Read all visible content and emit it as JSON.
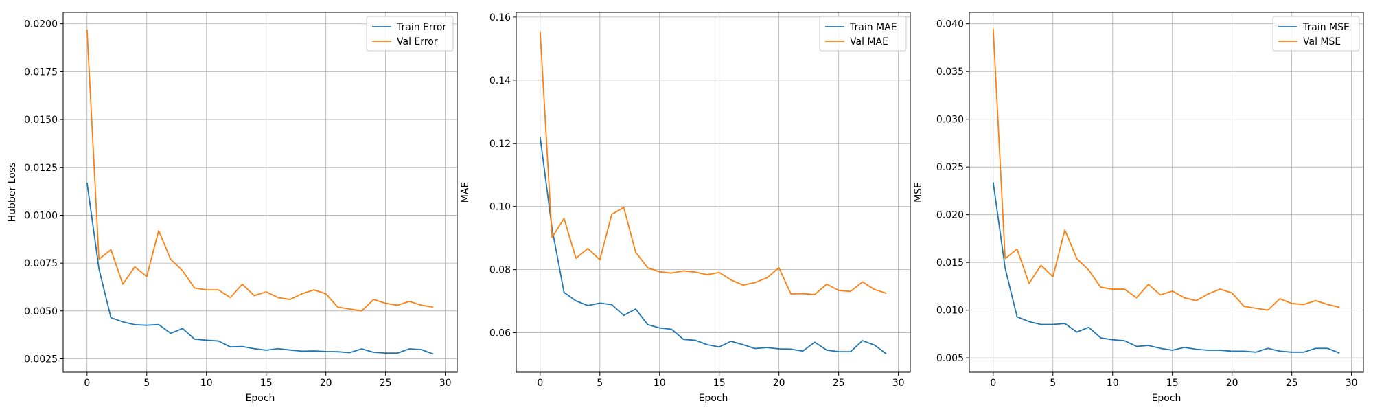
{
  "chart_data": [
    {
      "type": "line",
      "xlabel": "Epoch",
      "ylabel": "Hubber Loss",
      "xlim": [
        -2,
        31
      ],
      "ylim": [
        0.0018,
        0.0206
      ],
      "xticks": [
        0,
        5,
        10,
        15,
        20,
        25,
        30
      ],
      "xtick_labels": [
        "0",
        "5",
        "10",
        "15",
        "20",
        "25",
        "30"
      ],
      "yticks": [
        0.0025,
        0.005,
        0.0075,
        0.01,
        0.0125,
        0.015,
        0.0175,
        0.02
      ],
      "ytick_labels": [
        "0.0025",
        "0.0050",
        "0.0075",
        "0.0100",
        "0.0125",
        "0.0150",
        "0.0175",
        "0.0200"
      ],
      "grid": true,
      "legend_position": "top-right",
      "x": [
        0,
        1,
        2,
        3,
        4,
        5,
        6,
        7,
        8,
        9,
        10,
        11,
        12,
        13,
        14,
        15,
        16,
        17,
        18,
        19,
        20,
        21,
        22,
        23,
        24,
        25,
        26,
        27,
        28,
        29
      ],
      "series": [
        {
          "name": "Train Error",
          "color": "#1f77b4",
          "values": [
            0.0117,
            0.0072,
            0.00465,
            0.00443,
            0.00428,
            0.00425,
            0.00429,
            0.00383,
            0.00408,
            0.00353,
            0.00347,
            0.00343,
            0.00312,
            0.00314,
            0.00303,
            0.00295,
            0.00303,
            0.00296,
            0.0029,
            0.00291,
            0.00288,
            0.00287,
            0.00282,
            0.00302,
            0.00284,
            0.0028,
            0.0028,
            0.00302,
            0.00298,
            0.00275
          ]
        },
        {
          "name": "Val Error",
          "color": "#ff7f0e",
          "values": [
            0.0197,
            0.0077,
            0.0082,
            0.0064,
            0.0073,
            0.0068,
            0.0092,
            0.0077,
            0.0071,
            0.0062,
            0.0061,
            0.0061,
            0.0057,
            0.0064,
            0.0058,
            0.006,
            0.0057,
            0.0056,
            0.0059,
            0.0061,
            0.0059,
            0.0052,
            0.0051,
            0.005,
            0.0056,
            0.0054,
            0.0053,
            0.0055,
            0.0053,
            0.0052
          ]
        }
      ]
    },
    {
      "type": "line",
      "xlabel": "Epoch",
      "ylabel": "MAE",
      "xlim": [
        -2,
        31
      ],
      "ylim": [
        0.0475,
        0.1615
      ],
      "xticks": [
        0,
        5,
        10,
        15,
        20,
        25,
        30
      ],
      "xtick_labels": [
        "0",
        "5",
        "10",
        "15",
        "20",
        "25",
        "30"
      ],
      "yticks": [
        0.06,
        0.08,
        0.1,
        0.12,
        0.14,
        0.16
      ],
      "ytick_labels": [
        "0.06",
        "0.08",
        "0.10",
        "0.12",
        "0.14",
        "0.16"
      ],
      "grid": true,
      "legend_position": "top-right",
      "x": [
        0,
        1,
        2,
        3,
        4,
        5,
        6,
        7,
        8,
        9,
        10,
        11,
        12,
        13,
        14,
        15,
        16,
        17,
        18,
        19,
        20,
        21,
        22,
        23,
        24,
        25,
        26,
        27,
        28,
        29
      ],
      "series": [
        {
          "name": "Train MAE",
          "color": "#1f77b4",
          "values": [
            0.122,
            0.093,
            0.0728,
            0.0701,
            0.0686,
            0.0694,
            0.0689,
            0.0655,
            0.0675,
            0.0626,
            0.0615,
            0.0611,
            0.0579,
            0.0576,
            0.0562,
            0.0555,
            0.0573,
            0.0562,
            0.055,
            0.0553,
            0.0549,
            0.0548,
            0.0542,
            0.057,
            0.0545,
            0.054,
            0.054,
            0.0575,
            0.0561,
            0.0533
          ]
        },
        {
          "name": "Val MAE",
          "color": "#ff7f0e",
          "values": [
            0.1555,
            0.0902,
            0.0962,
            0.0836,
            0.0867,
            0.0831,
            0.0975,
            0.0997,
            0.0855,
            0.0806,
            0.0793,
            0.0789,
            0.0796,
            0.0792,
            0.0784,
            0.0791,
            0.0767,
            0.0751,
            0.0759,
            0.0774,
            0.0806,
            0.0723,
            0.0724,
            0.0721,
            0.0754,
            0.0734,
            0.0731,
            0.0761,
            0.0737,
            0.0725
          ]
        }
      ]
    },
    {
      "type": "line",
      "xlabel": "Epoch",
      "ylabel": "MSE",
      "xlim": [
        -2,
        31
      ],
      "ylim": [
        0.0035,
        0.0412
      ],
      "xticks": [
        0,
        5,
        10,
        15,
        20,
        25,
        30
      ],
      "xtick_labels": [
        "0",
        "5",
        "10",
        "15",
        "20",
        "25",
        "30"
      ],
      "yticks": [
        0.005,
        0.01,
        0.015,
        0.02,
        0.025,
        0.03,
        0.035,
        0.04
      ],
      "ytick_labels": [
        "0.005",
        "0.010",
        "0.015",
        "0.020",
        "0.025",
        "0.030",
        "0.035",
        "0.040"
      ],
      "grid": true,
      "legend_position": "top-right",
      "x": [
        0,
        1,
        2,
        3,
        4,
        5,
        6,
        7,
        8,
        9,
        10,
        11,
        12,
        13,
        14,
        15,
        16,
        17,
        18,
        19,
        20,
        21,
        22,
        23,
        24,
        25,
        26,
        27,
        28,
        29
      ],
      "series": [
        {
          "name": "Train MSE",
          "color": "#1f77b4",
          "values": [
            0.0234,
            0.0144,
            0.0093,
            0.0088,
            0.0085,
            0.0085,
            0.0086,
            0.0077,
            0.0082,
            0.0071,
            0.0069,
            0.0068,
            0.0062,
            0.0063,
            0.006,
            0.0058,
            0.0061,
            0.0059,
            0.0058,
            0.0058,
            0.0057,
            0.0057,
            0.0056,
            0.006,
            0.0057,
            0.0056,
            0.0056,
            0.006,
            0.006,
            0.0055
          ]
        },
        {
          "name": "Val MSE",
          "color": "#ff7f0e",
          "values": [
            0.0395,
            0.0154,
            0.0164,
            0.0128,
            0.0147,
            0.0135,
            0.0184,
            0.0154,
            0.0142,
            0.0124,
            0.0122,
            0.0122,
            0.0113,
            0.0127,
            0.0116,
            0.012,
            0.0113,
            0.011,
            0.0117,
            0.0122,
            0.0118,
            0.0104,
            0.0102,
            0.01,
            0.0112,
            0.0107,
            0.0106,
            0.011,
            0.0106,
            0.0103
          ]
        }
      ]
    }
  ]
}
